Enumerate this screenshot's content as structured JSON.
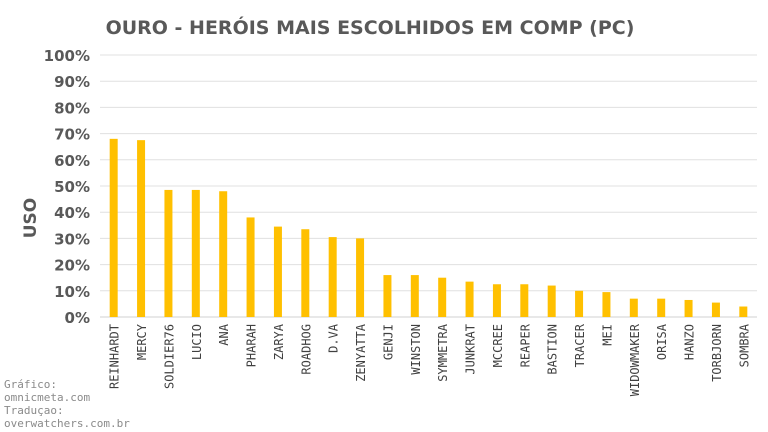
{
  "chart_data": {
    "type": "bar",
    "title": "OURO - HERÓIS MAIS ESCOLHIDOS EM COMP (PC)",
    "ylabel": "USO",
    "xlabel": "",
    "ylim": [
      0,
      100
    ],
    "ytick_step": 10,
    "ytick_suffix": "%",
    "grid": true,
    "legend": "none",
    "bar_color": "#FFC000",
    "categories": [
      "REINHARDT",
      "MERCY",
      "SOLDIER76",
      "LUCIO",
      "ANA",
      "PHARAH",
      "ZARYA",
      "ROADHOG",
      "D.VA",
      "ZENYATTA",
      "GENJI",
      "WINSTON",
      "SYMMETRA",
      "JUNKRAT",
      "MCCREE",
      "REAPER",
      "BASTION",
      "TRACER",
      "MEI",
      "WIDOWMAKER",
      "ORISA",
      "HANZO",
      "TORBJORN",
      "SOMBRA"
    ],
    "values": [
      68,
      67.5,
      48.5,
      48.5,
      48,
      38,
      34.5,
      33.5,
      30.5,
      30,
      16,
      16,
      15,
      13.5,
      12.5,
      12.5,
      12,
      10,
      9.5,
      7,
      7,
      6.5,
      5.5,
      4
    ]
  },
  "credits": {
    "line1": "Gráfico:",
    "line2": "omnicmeta.com",
    "line3": "Traduçao:",
    "line4": "overwatchers.com.br"
  }
}
